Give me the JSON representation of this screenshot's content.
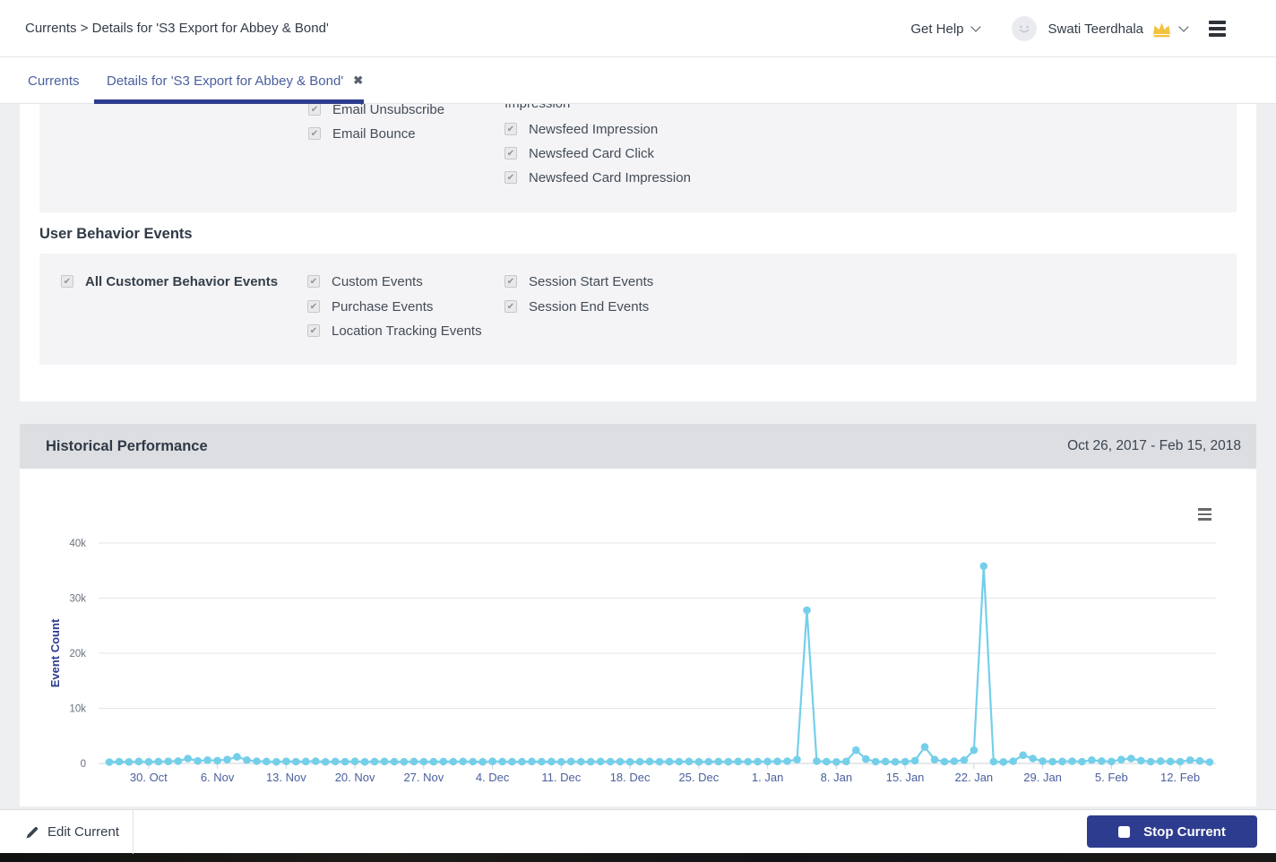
{
  "header": {
    "breadcrumb": "Currents > Details for 'S3 Export for Abbey & Bond'",
    "get_help_label": "Get Help",
    "user_name": "Swati Teerdhala"
  },
  "tabs": [
    {
      "label": "Currents",
      "active": false
    },
    {
      "label": "Details for 'S3 Export for Abbey & Bond'",
      "active": true,
      "closable": true
    }
  ],
  "message_events": {
    "left_column": [
      "Email Unsubscribe",
      "Email Bounce"
    ],
    "right_heading": "Impression",
    "right_column": [
      "Newsfeed Impression",
      "Newsfeed Card Click",
      "Newsfeed Card Impression"
    ]
  },
  "user_behavior": {
    "heading": "User Behavior Events",
    "primary": "All Customer Behavior Events",
    "column2": [
      "Custom Events",
      "Purchase Events",
      "Location Tracking Events"
    ],
    "column3": [
      "Session Start Events",
      "Session End Events"
    ]
  },
  "historical": {
    "title": "Historical Performance",
    "date_range": "Oct 26, 2017 - Feb 15, 2018"
  },
  "footer": {
    "edit_label": "Edit Current",
    "stop_label": "Stop Current"
  },
  "colors": {
    "accent_navy": "#2e3c8f",
    "tab_blue": "#4a5f9e",
    "line_blue": "#74cfe9",
    "grid_gray": "#e6e6e6",
    "axis_gray": "#ccd1d9",
    "ytick_gray": "#69727b",
    "crown_gold": "#f2c33d"
  },
  "chart_data": {
    "type": "line",
    "title": "",
    "xlabel": "",
    "ylabel": "Event Count",
    "ylim": [
      0,
      40000
    ],
    "grid": true,
    "legend": false,
    "start_date": "Oct 26, 2017",
    "end_date": "Feb 15, 2018",
    "x_unit": "day",
    "yticks": [
      {
        "v": 0,
        "label": "0"
      },
      {
        "v": 10000,
        "label": "10k"
      },
      {
        "v": 20000,
        "label": "20k"
      },
      {
        "v": 30000,
        "label": "30k"
      },
      {
        "v": 40000,
        "label": "40k"
      }
    ],
    "xticks": [
      {
        "i": 4,
        "label": "30. Oct"
      },
      {
        "i": 11,
        "label": "6. Nov"
      },
      {
        "i": 18,
        "label": "13. Nov"
      },
      {
        "i": 25,
        "label": "20. Nov"
      },
      {
        "i": 32,
        "label": "27. Nov"
      },
      {
        "i": 39,
        "label": "4. Dec"
      },
      {
        "i": 46,
        "label": "11. Dec"
      },
      {
        "i": 53,
        "label": "18. Dec"
      },
      {
        "i": 60,
        "label": "25. Dec"
      },
      {
        "i": 67,
        "label": "1. Jan"
      },
      {
        "i": 74,
        "label": "8. Jan"
      },
      {
        "i": 81,
        "label": "15. Jan"
      },
      {
        "i": 88,
        "label": "22. Jan"
      },
      {
        "i": 95,
        "label": "29. Jan"
      },
      {
        "i": 102,
        "label": "5. Feb"
      },
      {
        "i": 109,
        "label": "12. Feb"
      }
    ],
    "series": [
      {
        "name": "Event Count",
        "color": "#74cfe9",
        "values": [
          250,
          320,
          280,
          350,
          300,
          340,
          380,
          420,
          900,
          450,
          600,
          500,
          700,
          1200,
          600,
          400,
          350,
          300,
          380,
          320,
          350,
          400,
          300,
          350,
          320,
          380,
          300,
          340,
          360,
          320,
          300,
          350,
          330,
          310,
          340,
          320,
          350,
          320,
          300,
          380,
          340,
          310,
          330,
          360,
          320,
          340,
          300,
          350,
          330,
          310,
          350,
          320,
          340,
          300,
          330,
          360,
          310,
          340,
          320,
          350,
          300,
          330,
          340,
          310,
          350,
          320,
          340,
          350,
          380,
          400,
          700,
          27800,
          420,
          330,
          280,
          350,
          2400,
          800,
          320,
          360,
          300,
          320,
          500,
          3000,
          700,
          320,
          400,
          600,
          2400,
          35800,
          320,
          280,
          400,
          1500,
          900,
          420,
          330,
          360,
          400,
          320,
          600,
          420,
          360,
          700,
          900,
          500,
          320,
          420,
          360,
          320,
          600,
          450,
          250
        ]
      }
    ]
  }
}
